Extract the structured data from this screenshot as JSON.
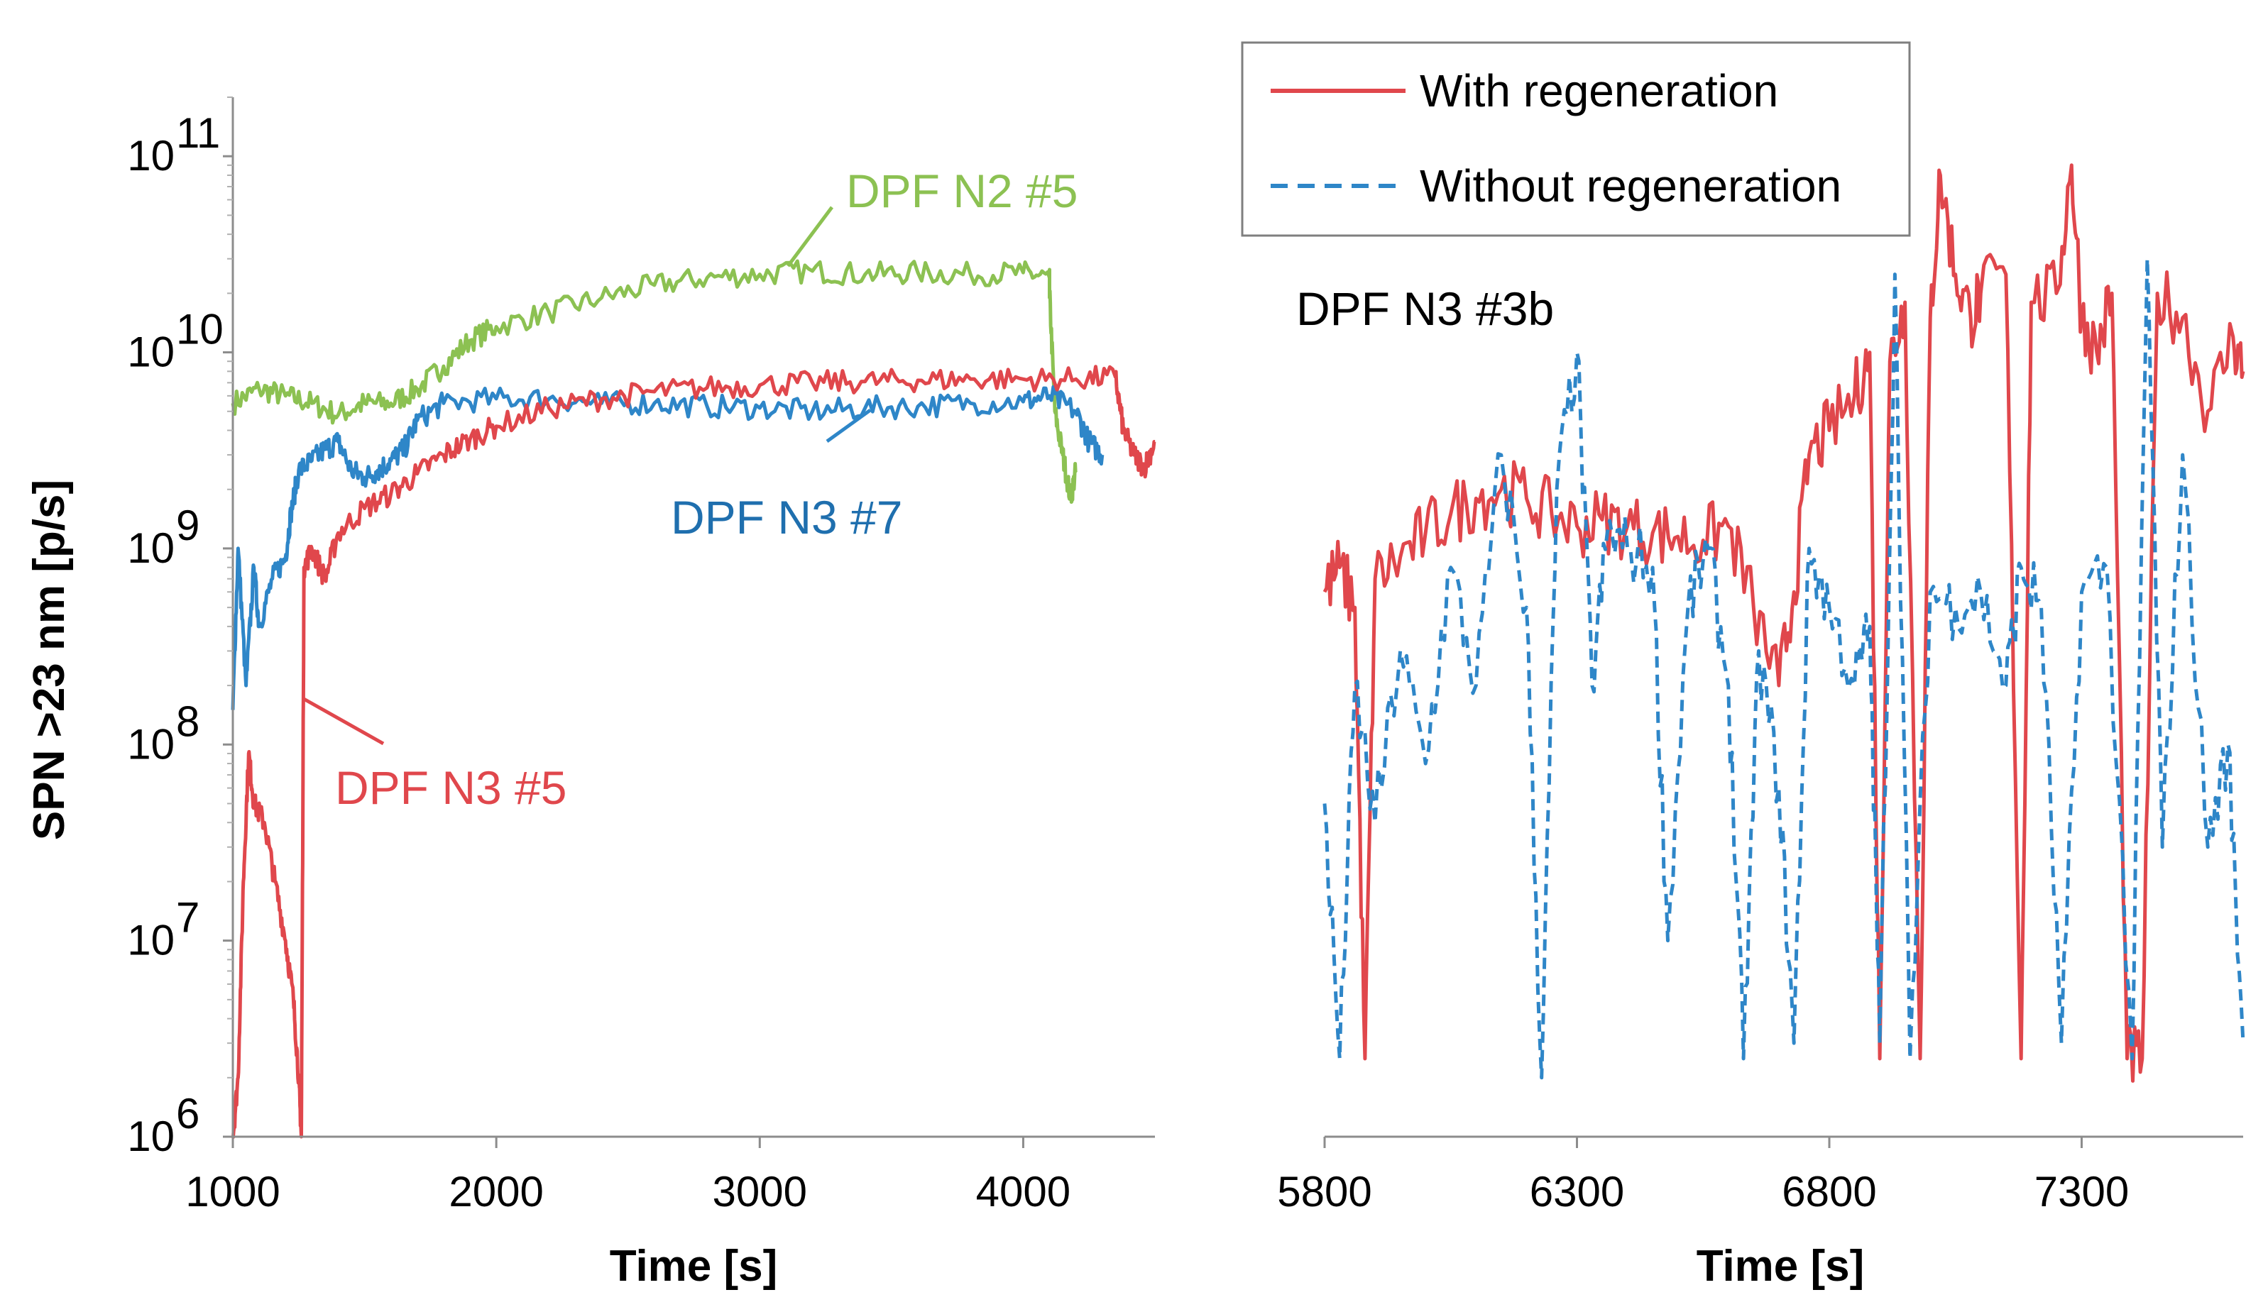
{
  "chart_data": [
    {
      "type": "line",
      "panel": "left",
      "scale": "log",
      "xlabel": "Time [s]",
      "ylabel": "SPN >23 nm [p/s]",
      "xlim": [
        1000,
        4500
      ],
      "ylim": [
        1000000,
        200000000000
      ],
      "x_ticks": [
        "1000",
        "2000",
        "3000",
        "4000"
      ],
      "y_ticks": [
        {
          "base": "10",
          "exp": "6",
          "value": 1000000
        },
        {
          "base": "10",
          "exp": "7",
          "value": 10000000
        },
        {
          "base": "10",
          "exp": "8",
          "value": 100000000
        },
        {
          "base": "10",
          "exp": "9",
          "value": 1000000000
        },
        {
          "base": "10",
          "exp": "10",
          "value": 10000000000
        },
        {
          "base": "10",
          "exp": "11",
          "value": 100000000000
        }
      ],
      "grid": false,
      "series": [
        {
          "name": "DPF N2 #5",
          "color": "#8cc152",
          "style": "solid",
          "points": [
            [
              1000,
              5500000000.0
            ],
            [
              1100,
              6500000000.0
            ],
            [
              1200,
              6000000000.0
            ],
            [
              1300,
              5500000000.0
            ],
            [
              1400,
              4800000000.0
            ],
            [
              1500,
              5500000000.0
            ],
            [
              1600,
              5500000000.0
            ],
            [
              1700,
              6500000000.0
            ],
            [
              1800,
              8500000000.0
            ],
            [
              1900,
              11500000000.0
            ],
            [
              2000,
              13500000000.0
            ],
            [
              2200,
              16000000000.0
            ],
            [
              2400,
              19000000000.0
            ],
            [
              2600,
              22000000000.0
            ],
            [
              2800,
              24000000000.0
            ],
            [
              3000,
              25000000000.0
            ],
            [
              3200,
              26000000000.0
            ],
            [
              3400,
              25000000000.0
            ],
            [
              3600,
              25500000000.0
            ],
            [
              3800,
              25000000000.0
            ],
            [
              4000,
              25500000000.0
            ],
            [
              4100,
              24000000000.0
            ],
            [
              4100,
              20000000000.0
            ],
            [
              4120,
              5000000000.0
            ],
            [
              4150,
              3000000000.0
            ],
            [
              4180,
              1800000000.0
            ],
            [
              4200,
              2500000000.0
            ]
          ]
        },
        {
          "name": "DPF N3 #7",
          "color": "#2e86c8",
          "style": "solid",
          "points": [
            [
              1000,
              150000000.0
            ],
            [
              1020,
              1000000000.0
            ],
            [
              1050,
              200000000.0
            ],
            [
              1080,
              800000000.0
            ],
            [
              1100,
              400000000.0
            ],
            [
              1150,
              700000000.0
            ],
            [
              1200,
              900000000.0
            ],
            [
              1220,
              1500000000.0
            ],
            [
              1250,
              2500000000.0
            ],
            [
              1300,
              2800000000.0
            ],
            [
              1350,
              3200000000.0
            ],
            [
              1400,
              3500000000.0
            ],
            [
              1450,
              2500000000.0
            ],
            [
              1500,
              2300000000.0
            ],
            [
              1550,
              2500000000.0
            ],
            [
              1600,
              2800000000.0
            ],
            [
              1650,
              3200000000.0
            ],
            [
              1700,
              4500000000.0
            ],
            [
              1800,
              5500000000.0
            ],
            [
              2000,
              5800000000.0
            ],
            [
              2200,
              5800000000.0
            ],
            [
              2400,
              5500000000.0
            ],
            [
              2600,
              5500000000.0
            ],
            [
              2800,
              5300000000.0
            ],
            [
              3000,
              5200000000.0
            ],
            [
              3200,
              5000000000.0
            ],
            [
              3400,
              5200000000.0
            ],
            [
              3600,
              5300000000.0
            ],
            [
              3800,
              5500000000.0
            ],
            [
              4000,
              5600000000.0
            ],
            [
              4100,
              6000000000.0
            ],
            [
              4200,
              5000000000.0
            ],
            [
              4250,
              3500000000.0
            ],
            [
              4300,
              3000000000.0
            ]
          ]
        },
        {
          "name": "DPF N3 #5",
          "color": "#e0474c",
          "style": "solid",
          "points": [
            [
              1000,
              1000000.0
            ],
            [
              1020,
              2000000.0
            ],
            [
              1040,
              20000000.0
            ],
            [
              1060,
              90000000.0
            ],
            [
              1080,
              50000000.0
            ],
            [
              1120,
              40000000.0
            ],
            [
              1160,
              20000000.0
            ],
            [
              1200,
              10000000.0
            ],
            [
              1230,
              5000000.0
            ],
            [
              1250,
              2000000.0
            ],
            [
              1260,
              1000000.0
            ],
            [
              1270,
              800000000.0
            ],
            [
              1300,
              1000000000.0
            ],
            [
              1350,
              700000000.0
            ],
            [
              1400,
              1200000000.0
            ],
            [
              1500,
              1600000000.0
            ],
            [
              1600,
              1900000000.0
            ],
            [
              1700,
              2400000000.0
            ],
            [
              1800,
              3000000000.0
            ],
            [
              1900,
              3600000000.0
            ],
            [
              2000,
              4200000000.0
            ],
            [
              2200,
              5200000000.0
            ],
            [
              2400,
              5800000000.0
            ],
            [
              2600,
              6300000000.0
            ],
            [
              2800,
              6600000000.0
            ],
            [
              3000,
              6800000000.0
            ],
            [
              3200,
              7000000000.0
            ],
            [
              3400,
              7100000000.0
            ],
            [
              3600,
              7200000000.0
            ],
            [
              3800,
              7300000000.0
            ],
            [
              4000,
              7300000000.0
            ],
            [
              4200,
              7300000000.0
            ],
            [
              4350,
              7500000000.0
            ],
            [
              4380,
              4000000000.0
            ],
            [
              4420,
              3000000000.0
            ],
            [
              4460,
              2600000000.0
            ],
            [
              4500,
              3500000000.0
            ]
          ]
        }
      ],
      "annotations": [
        {
          "text": "DPF N2 #5",
          "color": "#8cc152"
        },
        {
          "text": "DPF N3 #7",
          "color": "#1f6fae"
        },
        {
          "text": "DPF N3 #5",
          "color": "#e0474c"
        }
      ]
    },
    {
      "type": "line",
      "panel": "right",
      "scale": "log",
      "xlabel": "Time [s]",
      "xlim": [
        5800,
        7620
      ],
      "ylim": [
        1000000,
        200000000000
      ],
      "x_ticks": [
        "5800",
        "6300",
        "6800",
        "7300"
      ],
      "grid": false,
      "legend_position": "top-right",
      "title_annotation": "DPF N3 #3b",
      "series": [
        {
          "name": "With regeneration",
          "color": "#e0474c",
          "style": "solid",
          "points": [
            [
              5800,
              600000000.0
            ],
            [
              5830,
              800000000.0
            ],
            [
              5860,
              500000000.0
            ],
            [
              5880,
              2500000.0
            ],
            [
              5900,
              700000000.0
            ],
            [
              5950,
              900000000.0
            ],
            [
              6000,
              1200000000.0
            ],
            [
              6050,
              1500000000.0
            ],
            [
              6100,
              1800000000.0
            ],
            [
              6150,
              2000000000.0
            ],
            [
              6200,
              1800000000.0
            ],
            [
              6250,
              1500000000.0
            ],
            [
              6300,
              1300000000.0
            ],
            [
              6350,
              1400000000.0
            ],
            [
              6400,
              1300000000.0
            ],
            [
              6450,
              1200000000.0
            ],
            [
              6500,
              1150000000.0
            ],
            [
              6550,
              1100000000.0
            ],
            [
              6600,
              1300000000.0
            ],
            [
              6650,
              500000000.0
            ],
            [
              6700,
              200000000.0
            ],
            [
              6730,
              600000000.0
            ],
            [
              6760,
              3000000000.0
            ],
            [
              6800,
              4000000000.0
            ],
            [
              6850,
              6000000000.0
            ],
            [
              6880,
              10000000000.0
            ],
            [
              6900,
              2500000.0
            ],
            [
              6920,
              9000000000.0
            ],
            [
              6950,
              18000000000.0
            ],
            [
              6980,
              2500000.0
            ],
            [
              7000,
              15000000000.0
            ],
            [
              7020,
              80000000000.0
            ],
            [
              7050,
              25000000000.0
            ],
            [
              7080,
              15000000000.0
            ],
            [
              7100,
              20000000000.0
            ],
            [
              7150,
              25000000000.0
            ],
            [
              7180,
              2500000.0
            ],
            [
              7200,
              18000000000.0
            ],
            [
              7250,
              20000000000.0
            ],
            [
              7280,
              90000000000.0
            ],
            [
              7300,
              15000000000.0
            ],
            [
              7330,
              10000000000.0
            ],
            [
              7360,
              20000000000.0
            ],
            [
              7390,
              2500000.0
            ],
            [
              7420,
              2500000.0
            ],
            [
              7450,
              20000000000.0
            ],
            [
              7500,
              15000000000.0
            ],
            [
              7550,
              5000000000.0
            ],
            [
              7600,
              12000000000.0
            ],
            [
              7620,
              8000000000.0
            ]
          ]
        },
        {
          "name": "Without regeneration",
          "color": "#2e86c8",
          "style": "dashed",
          "points": [
            [
              5800,
              50000000.0
            ],
            [
              5830,
              2500000.0
            ],
            [
              5860,
              200000000.0
            ],
            [
              5900,
              40000000.0
            ],
            [
              5950,
              300000000.0
            ],
            [
              6000,
              80000000.0
            ],
            [
              6050,
              800000000.0
            ],
            [
              6100,
              200000000.0
            ],
            [
              6150,
              3000000000.0
            ],
            [
              6200,
              500000000.0
            ],
            [
              6230,
              2000000.0
            ],
            [
              6260,
              2000000000.0
            ],
            [
              6300,
              10000000000.0
            ],
            [
              6330,
              200000000.0
            ],
            [
              6360,
              1200000000.0
            ],
            [
              6400,
              1000000000.0
            ],
            [
              6450,
              800000000.0
            ],
            [
              6480,
              10000000.0
            ],
            [
              6520,
              500000000.0
            ],
            [
              6560,
              1000000000.0
            ],
            [
              6600,
              200000000.0
            ],
            [
              6630,
              2500000.0
            ],
            [
              6660,
              300000000.0
            ],
            [
              6700,
              60000000.0
            ],
            [
              6730,
              3000000.0
            ],
            [
              6760,
              1000000000.0
            ],
            [
              6800,
              500000000.0
            ],
            [
              6850,
              200000000.0
            ],
            [
              6880,
              400000000.0
            ],
            [
              6900,
              3000000.0
            ],
            [
              6930,
              25000000000.0
            ],
            [
              6960,
              2500000.0
            ],
            [
              7000,
              600000000.0
            ],
            [
              7050,
              500000000.0
            ],
            [
              7100,
              600000000.0
            ],
            [
              7150,
              200000000.0
            ],
            [
              7180,
              800000000.0
            ],
            [
              7220,
              500000000.0
            ],
            [
              7260,
              3000000.0
            ],
            [
              7300,
              600000000.0
            ],
            [
              7350,
              800000000.0
            ],
            [
              7400,
              2500000.0
            ],
            [
              7430,
              30000000000.0
            ],
            [
              7460,
              30000000.0
            ],
            [
              7500,
              3000000000.0
            ],
            [
              7550,
              30000000.0
            ],
            [
              7590,
              100000000.0
            ],
            [
              7620,
              3000000.0
            ]
          ]
        }
      ]
    }
  ]
}
